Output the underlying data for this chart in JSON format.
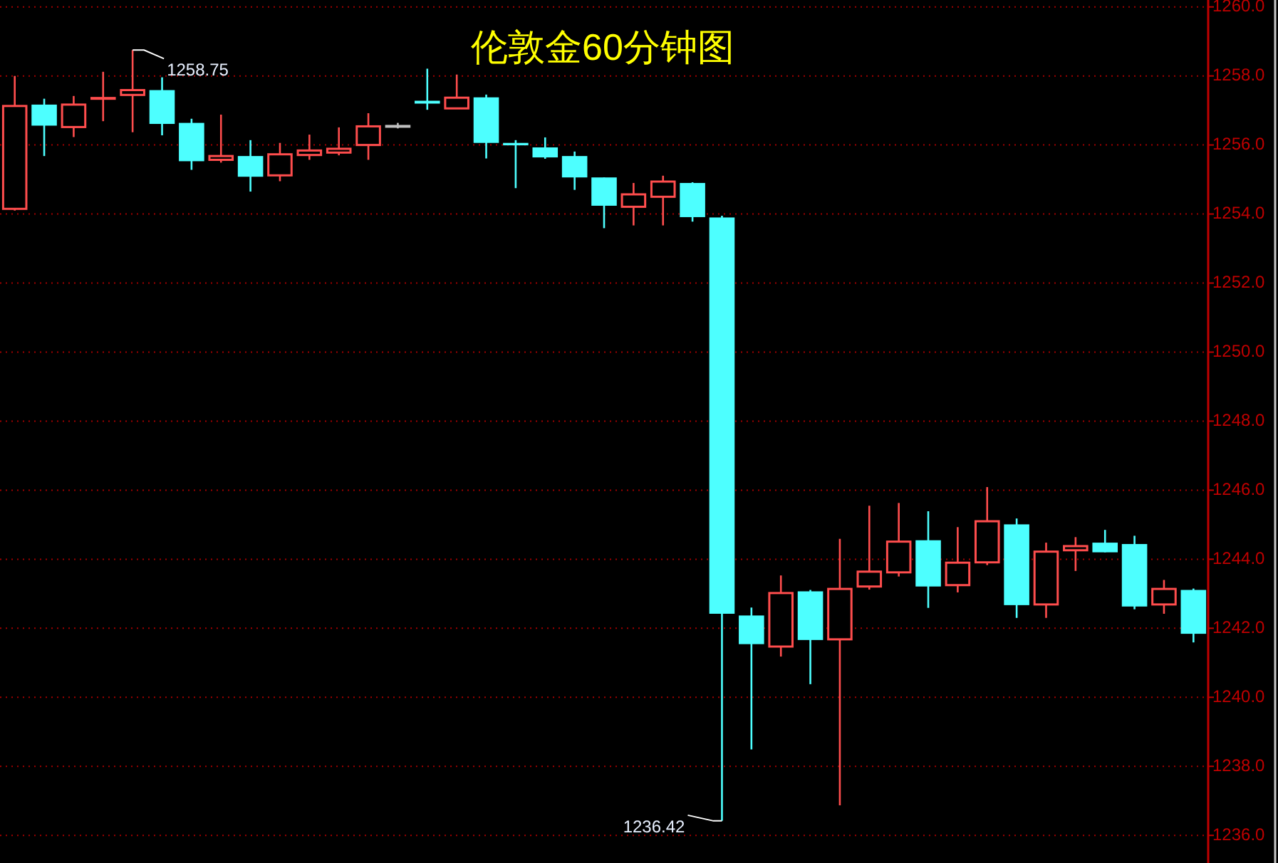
{
  "chart_data": {
    "type": "candlestick",
    "title": "伦敦金60分钟图",
    "categories": [
      null,
      null,
      null,
      null,
      null,
      null,
      null,
      null,
      null,
      null,
      null,
      null,
      null,
      null,
      null,
      null,
      null,
      null,
      null,
      null,
      null,
      null,
      null,
      null,
      null,
      null,
      null,
      null,
      null,
      null,
      null,
      null,
      null,
      null,
      null,
      null,
      null,
      null,
      null,
      null,
      null
    ],
    "ohlc": [
      [
        1254.15,
        1258.0,
        1254.1,
        1257.13
      ],
      [
        1257.17,
        1257.34,
        1255.68,
        1256.56
      ],
      [
        1256.52,
        1257.42,
        1256.23,
        1257.17
      ],
      [
        1257.33,
        1258.12,
        1256.69,
        1257.37
      ],
      [
        1257.45,
        1258.75,
        1256.37,
        1257.59
      ],
      [
        1257.59,
        1257.96,
        1256.28,
        1256.61
      ],
      [
        1256.64,
        1256.76,
        1255.28,
        1255.53
      ],
      [
        1255.57,
        1256.88,
        1255.49,
        1255.68
      ],
      [
        1255.68,
        1256.14,
        1254.65,
        1255.08
      ],
      [
        1255.12,
        1256.06,
        1254.95,
        1255.73
      ],
      [
        1255.71,
        1256.3,
        1255.57,
        1255.84
      ],
      [
        1255.78,
        1256.51,
        1255.7,
        1255.89
      ],
      [
        1256.0,
        1256.92,
        1255.57,
        1256.54
      ],
      [
        1256.54,
        1256.64,
        1256.48,
        1256.54
      ],
      [
        1257.24,
        1258.21,
        1257.02,
        1257.24
      ],
      [
        1257.06,
        1258.04,
        1257.06,
        1257.37
      ],
      [
        1257.38,
        1257.46,
        1255.61,
        1256.06
      ],
      [
        1256.06,
        1256.14,
        1254.75,
        1255.99
      ],
      [
        1255.93,
        1256.22,
        1255.6,
        1255.64
      ],
      [
        1255.68,
        1255.81,
        1254.7,
        1255.06
      ],
      [
        1255.06,
        1255.06,
        1253.59,
        1254.24
      ],
      [
        1254.21,
        1254.9,
        1253.67,
        1254.57
      ],
      [
        1254.5,
        1255.11,
        1253.67,
        1254.94
      ],
      [
        1254.9,
        1254.92,
        1253.78,
        1253.91
      ],
      [
        1253.9,
        1253.95,
        1236.42,
        1242.42
      ],
      [
        1242.37,
        1242.6,
        1238.49,
        1241.54
      ],
      [
        1241.47,
        1243.53,
        1241.18,
        1243.02
      ],
      [
        1243.07,
        1243.11,
        1240.38,
        1241.66
      ],
      [
        1241.68,
        1244.59,
        1236.87,
        1243.14
      ],
      [
        1243.21,
        1245.55,
        1243.12,
        1243.64
      ],
      [
        1243.62,
        1245.63,
        1243.5,
        1244.51
      ],
      [
        1244.55,
        1245.39,
        1242.59,
        1243.21
      ],
      [
        1243.25,
        1244.93,
        1243.04,
        1243.9
      ],
      [
        1243.91,
        1246.09,
        1243.83,
        1245.1
      ],
      [
        1245.01,
        1245.18,
        1242.3,
        1242.67
      ],
      [
        1242.69,
        1244.48,
        1242.3,
        1244.22
      ],
      [
        1244.26,
        1244.64,
        1243.66,
        1244.38
      ],
      [
        1244.48,
        1244.85,
        1244.2,
        1244.2
      ],
      [
        1244.44,
        1244.68,
        1242.55,
        1242.63
      ],
      [
        1242.69,
        1243.4,
        1242.42,
        1243.14
      ],
      [
        1243.11,
        1243.15,
        1241.59,
        1241.84
      ]
    ],
    "colors": [
      "#ff4d4d",
      "#4dffff",
      "#ff4d4d",
      "#ff4d4d",
      "#ff4d4d",
      "#4dffff",
      "#4dffff",
      "#ff4d4d",
      "#4dffff",
      "#ff4d4d",
      "#ff4d4d",
      "#ff4d4d",
      "#ff4d4d",
      "#c0c0c0",
      "#4dffff",
      "#ff4d4d",
      "#4dffff",
      "#4dffff",
      "#4dffff",
      "#4dffff",
      "#4dffff",
      "#ff4d4d",
      "#ff4d4d",
      "#4dffff",
      "#4dffff",
      "#4dffff",
      "#ff4d4d",
      "#4dffff",
      "#ff4d4d",
      "#ff4d4d",
      "#ff4d4d",
      "#4dffff",
      "#ff4d4d",
      "#ff4d4d",
      "#4dffff",
      "#ff4d4d",
      "#ff4d4d",
      "#4dffff",
      "#4dffff",
      "#ff4d4d",
      "#4dffff"
    ],
    "ylim": [
      1235.2,
      1260.2
    ],
    "yticks": [
      {
        "value": 1236,
        "label": "1236.0"
      },
      {
        "value": 1238,
        "label": "1238.0"
      },
      {
        "value": 1240,
        "label": "1240.0"
      },
      {
        "value": 1242,
        "label": "1242.0"
      },
      {
        "value": 1244,
        "label": "1244.0"
      },
      {
        "value": 1246,
        "label": "1246.0"
      },
      {
        "value": 1248,
        "label": "1248.0"
      },
      {
        "value": 1250,
        "label": "1250.0"
      },
      {
        "value": 1252,
        "label": "1252.0"
      },
      {
        "value": 1254,
        "label": "1254.0"
      },
      {
        "value": 1256,
        "label": "1256.0"
      },
      {
        "value": 1258,
        "label": "1258.0"
      },
      {
        "value": 1260,
        "label": "1260.0"
      }
    ],
    "grid": "y",
    "annotations": [
      "1258.75",
      "1236.42"
    ]
  }
}
